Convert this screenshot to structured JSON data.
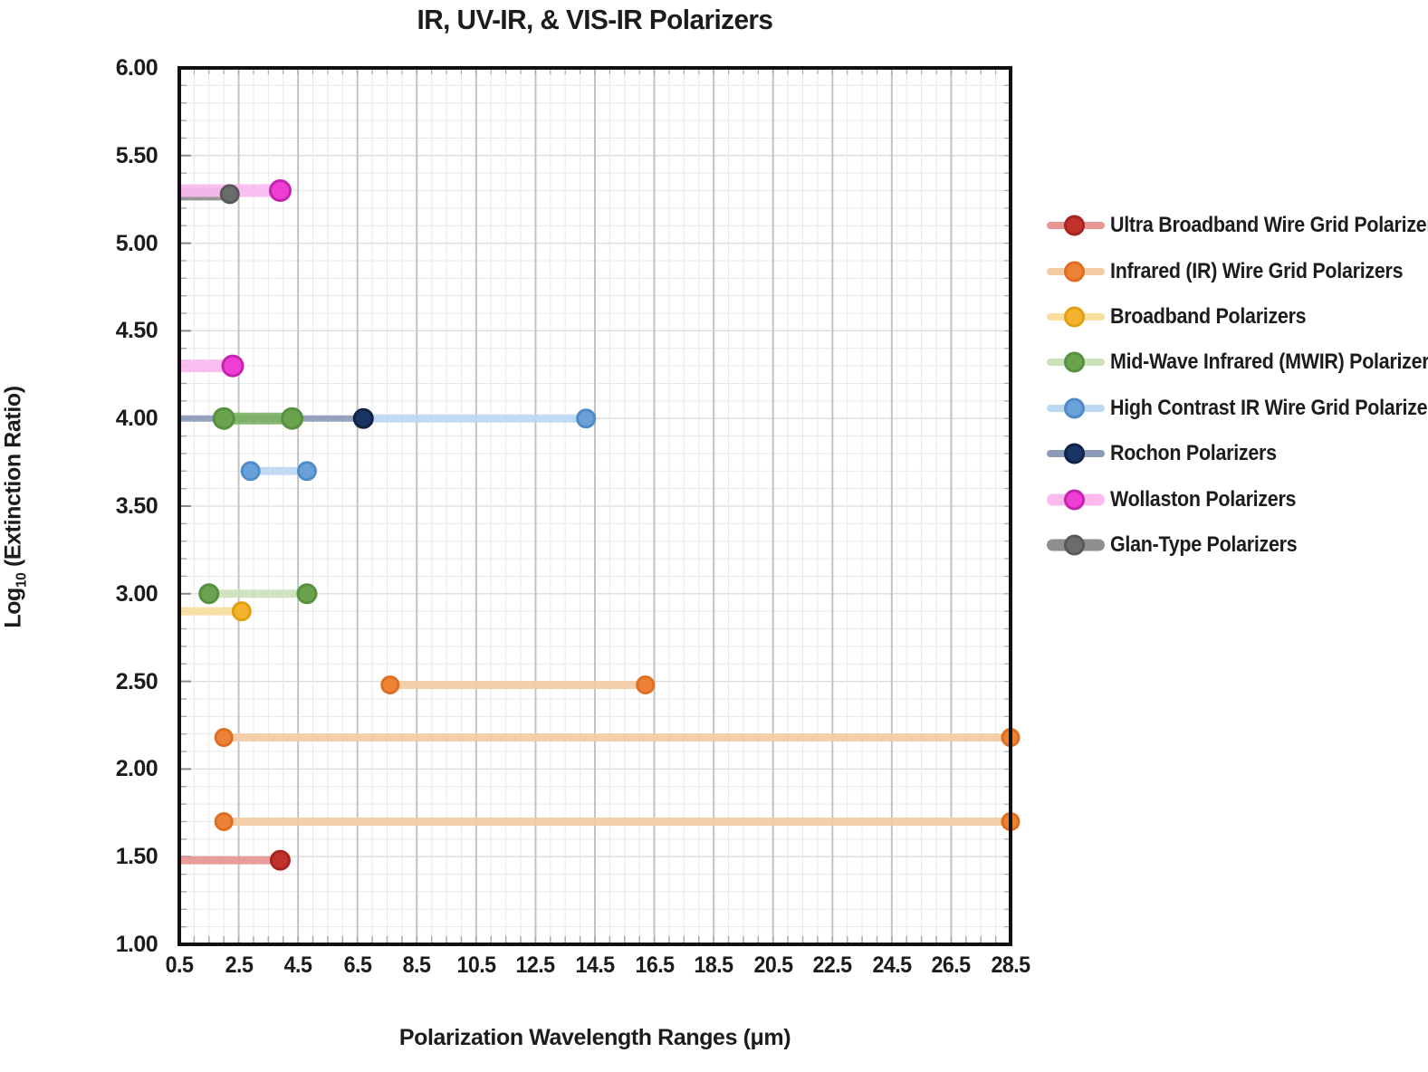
{
  "title": "IR, UV-IR, & VIS-IR Polarizers",
  "x_axis": {
    "label": "Polarization Wavelength Ranges (μm)",
    "min": 0.5,
    "max": 28.5,
    "tick_labels": [
      "0.5",
      "2.5",
      "4.5",
      "6.5",
      "8.5",
      "10.5",
      "12.5",
      "14.5",
      "16.5",
      "18.5",
      "20.5",
      "22.5",
      "24.5",
      "26.5",
      "28.5"
    ],
    "tick_values": [
      0.5,
      2.5,
      4.5,
      6.5,
      8.5,
      10.5,
      12.5,
      14.5,
      16.5,
      18.5,
      20.5,
      22.5,
      24.5,
      26.5,
      28.5
    ],
    "minor_grid_step": 0.5,
    "major_grid_step": 2
  },
  "y_axis": {
    "label": "Log10 (Extinction Ratio)",
    "label_parts": {
      "log": "Log",
      "sub": "10",
      "rest": " (Extinction Ratio)"
    },
    "min": 1.0,
    "max": 6.0,
    "tick_labels": [
      "6.00",
      "5.50",
      "5.00",
      "4.50",
      "4.00",
      "3.50",
      "3.00",
      "2.50",
      "2.00",
      "1.50",
      "1.00"
    ],
    "tick_values": [
      6.0,
      5.5,
      5.0,
      4.5,
      4.0,
      3.5,
      3.0,
      2.5,
      2.0,
      1.5,
      1.0
    ],
    "minor_grid_step": 0.1
  },
  "chart_data": {
    "type": "line",
    "subtype": "horizontal-wavelength-ranges",
    "title": "IR, UV-IR, & VIS-IR Polarizers",
    "xlabel": "Polarization Wavelength Ranges (μm)",
    "ylabel": "Log10 (Extinction Ratio)",
    "xlim": [
      0.5,
      28.5
    ],
    "ylim": [
      1.0,
      6.0
    ],
    "grid": "on",
    "legend_position": "right",
    "draw_order": [
      7,
      6,
      0,
      1,
      2,
      4,
      5,
      3
    ],
    "series": [
      {
        "name": "Ultra Broadband Wire Grid Polarizers",
        "line_color": "#E69693",
        "line_width": 9,
        "dot_color": "#C2312B",
        "dot_ring": "#A8241F",
        "dot_r": 11.5,
        "segments": [
          {
            "x_start": 0.5,
            "x_end": 3.9,
            "y": 1.48,
            "start_clipped": true,
            "dot_start": false,
            "dot_end": true
          }
        ]
      },
      {
        "name": "Infrared (IR) Wire Grid Polarizers",
        "line_color": "#F5CBA4",
        "line_width": 9,
        "dot_color": "#EC8236",
        "dot_ring": "#DD6E22",
        "dot_r": 10.5,
        "segments": [
          {
            "x_start": 7.6,
            "x_end": 16.2,
            "y": 2.48,
            "dot_start": true,
            "dot_end": true
          },
          {
            "x_start": 2.0,
            "x_end": 28.5,
            "y": 2.18,
            "end_clipped": true,
            "dot_start": true,
            "dot_end": true
          },
          {
            "x_start": 2.0,
            "x_end": 28.5,
            "y": 1.7,
            "end_clipped": true,
            "dot_start": true,
            "dot_end": true
          }
        ]
      },
      {
        "name": "Broadband Polarizers",
        "line_color": "#F8DF9E",
        "line_width": 9,
        "dot_color": "#F4B32C",
        "dot_ring": "#E29F12",
        "dot_r": 11,
        "segments": [
          {
            "x_start": 0.5,
            "x_end": 2.6,
            "y": 2.9,
            "start_clipped": true,
            "dot_start": false,
            "dot_end": true
          }
        ]
      },
      {
        "name": "Mid-Wave Infrared (MWIR) Polarizers",
        "line_color": "#CBE2BA",
        "line_width": 9,
        "dot_color": "#6AA24E",
        "dot_ring": "#579040",
        "dot_r": 11.5,
        "segments": [
          {
            "x_start": 2.0,
            "x_end": 4.3,
            "y": 4.0,
            "dot_start": true,
            "dot_end": true,
            "line_color": "#7DB263",
            "line_width": 13,
            "dot_r": 12.5
          },
          {
            "x_start": 1.5,
            "x_end": 4.8,
            "y": 3.0,
            "dot_start": true,
            "dot_end": true
          }
        ]
      },
      {
        "name": "High Contrast IR Wire Grid Polarizers",
        "line_color": "#BDD8F1",
        "line_width": 9,
        "dot_color": "#6BA1D9",
        "dot_ring": "#4E8BC8",
        "dot_r": 11,
        "segments": [
          {
            "x_start": 6.7,
            "x_end": 14.2,
            "y": 4.0,
            "dot_start": false,
            "dot_end": true
          },
          {
            "x_start": 2.9,
            "x_end": 4.8,
            "y": 3.7,
            "dot_start": true,
            "dot_end": true
          }
        ]
      },
      {
        "name": "Rochon Polarizers",
        "line_color": "#8C9CB8",
        "line_width": 7,
        "dot_color": "#1A3463",
        "dot_ring": "#0F2347",
        "dot_r": 11.5,
        "segments": [
          {
            "x_start": 0.5,
            "x_end": 6.7,
            "y": 4.0,
            "start_clipped": true,
            "dot_start": false,
            "dot_end": true
          }
        ]
      },
      {
        "name": "Wollaston Polarizers",
        "line_color": "#FABAF0",
        "line_width": 14,
        "dot_color": "#EE3ED4",
        "dot_ring": "#C424AC",
        "dot_r": 12.5,
        "segments": [
          {
            "x_start": 0.5,
            "x_end": 3.9,
            "y": 5.3,
            "start_clipped": true,
            "dot_start": false,
            "dot_end": true
          },
          {
            "x_start": 0.5,
            "x_end": 2.3,
            "y": 4.3,
            "start_clipped": true,
            "dot_start": false,
            "dot_end": true
          }
        ]
      },
      {
        "name": "Glan-Type Polarizers",
        "line_color": "#8E8E8E",
        "line_width": 14,
        "dot_color": "#6C6C6C",
        "dot_ring": "#585858",
        "dot_r": 11,
        "segments": [
          {
            "x_start": 0.5,
            "x_end": 2.2,
            "y": 5.28,
            "start_clipped": true,
            "dot_start": false,
            "dot_end": true
          }
        ]
      }
    ]
  },
  "legend": {
    "items": [
      {
        "label": "Ultra Broadband Wire Grid Polarizers",
        "line": "#E69693",
        "dot": "#C2312B",
        "ring": "#A8241F",
        "thick": false
      },
      {
        "label": "Infrared (IR) Wire Grid Polarizers",
        "line": "#F5CBA4",
        "dot": "#EC8236",
        "ring": "#DD6E22",
        "thick": false
      },
      {
        "label": "Broadband Polarizers",
        "line": "#F8DF9E",
        "dot": "#F4B32C",
        "ring": "#E29F12",
        "thick": false
      },
      {
        "label": "Mid-Wave Infrared (MWIR) Polarizers",
        "line": "#CBE2BA",
        "dot": "#6AA24E",
        "ring": "#579040",
        "thick": false
      },
      {
        "label": "High Contrast IR Wire Grid Polarizers",
        "line": "#BDD8F1",
        "dot": "#6BA1D9",
        "ring": "#4E8BC8",
        "thick": false
      },
      {
        "label": "Rochon Polarizers",
        "line": "#8C9CB8",
        "dot": "#1A3463",
        "ring": "#0F2347",
        "thick": false
      },
      {
        "label": "Wollaston Polarizers",
        "line": "#FABAF0",
        "dot": "#EE3ED4",
        "ring": "#C424AC",
        "thick": true
      },
      {
        "label": "Glan-Type Polarizers",
        "line": "#8E8E8E",
        "dot": "#6C6C6C",
        "ring": "#585858",
        "thick": true
      }
    ]
  },
  "grid_colors": {
    "minor": "#e9e9e9",
    "submajor": "#dcdcdc",
    "major": "#c3c3c3",
    "border": "#111111",
    "tick": "#a8a8a8",
    "tick_major": "#8a8a8a"
  }
}
